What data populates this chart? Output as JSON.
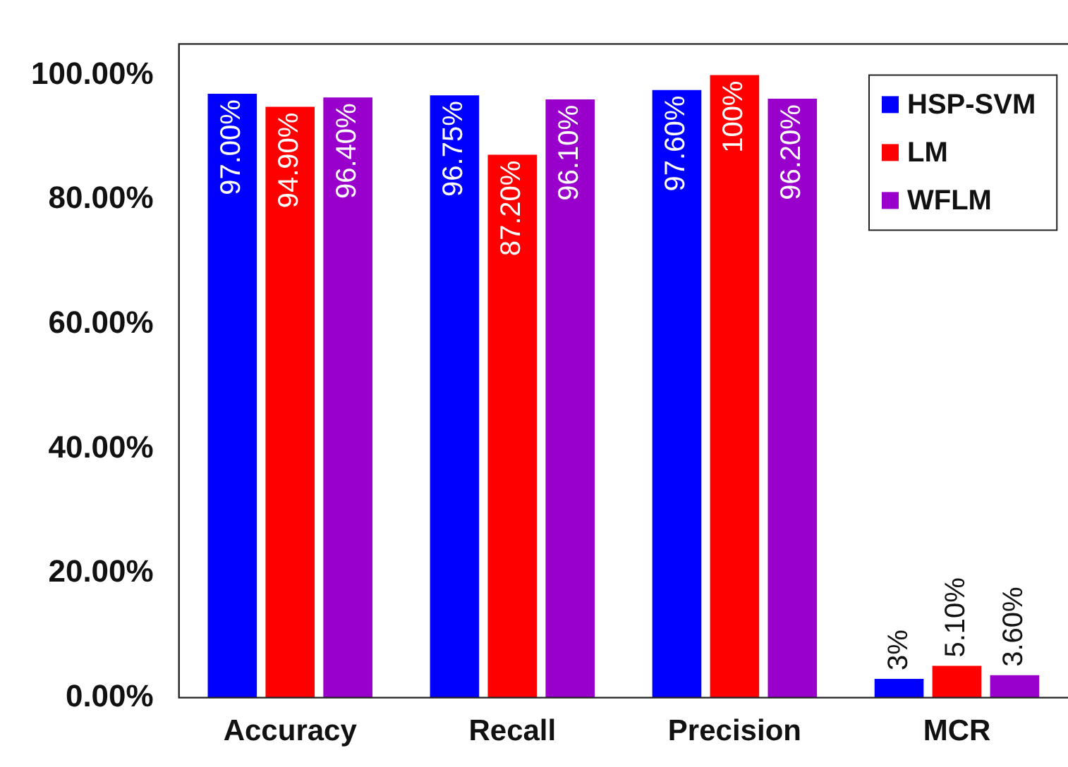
{
  "chart_data": {
    "type": "bar",
    "categories": [
      "Accuracy",
      "Recall",
      "Precision",
      "MCR"
    ],
    "series": [
      {
        "name": "HSP-SVM",
        "color": "#0000ff",
        "values": [
          97.0,
          96.75,
          97.6,
          3
        ],
        "value_labels": [
          "97.00%",
          "96.75%",
          "97.60%",
          "3%"
        ]
      },
      {
        "name": "LM",
        "color": "#ff0000",
        "values": [
          94.9,
          87.2,
          100,
          5.1
        ],
        "value_labels": [
          "94.90%",
          "87.20%",
          "100%",
          "5.10%"
        ]
      },
      {
        "name": "WFLM",
        "color": "#9900cc",
        "values": [
          96.4,
          96.1,
          96.2,
          3.6
        ],
        "value_labels": [
          "96.40%",
          "96.10%",
          "96.20%",
          "3.60%"
        ]
      }
    ],
    "ylim": [
      0,
      105
    ],
    "yticks": [
      {
        "value": 0,
        "label": "0.00%"
      },
      {
        "value": 20,
        "label": "20.00%"
      },
      {
        "value": 40,
        "label": "40.00%"
      },
      {
        "value": 60,
        "label": "60.00%"
      },
      {
        "value": 80,
        "label": "80.00%"
      },
      {
        "value": 100,
        "label": "100.00%"
      }
    ],
    "grid": false,
    "legend": "top right"
  }
}
